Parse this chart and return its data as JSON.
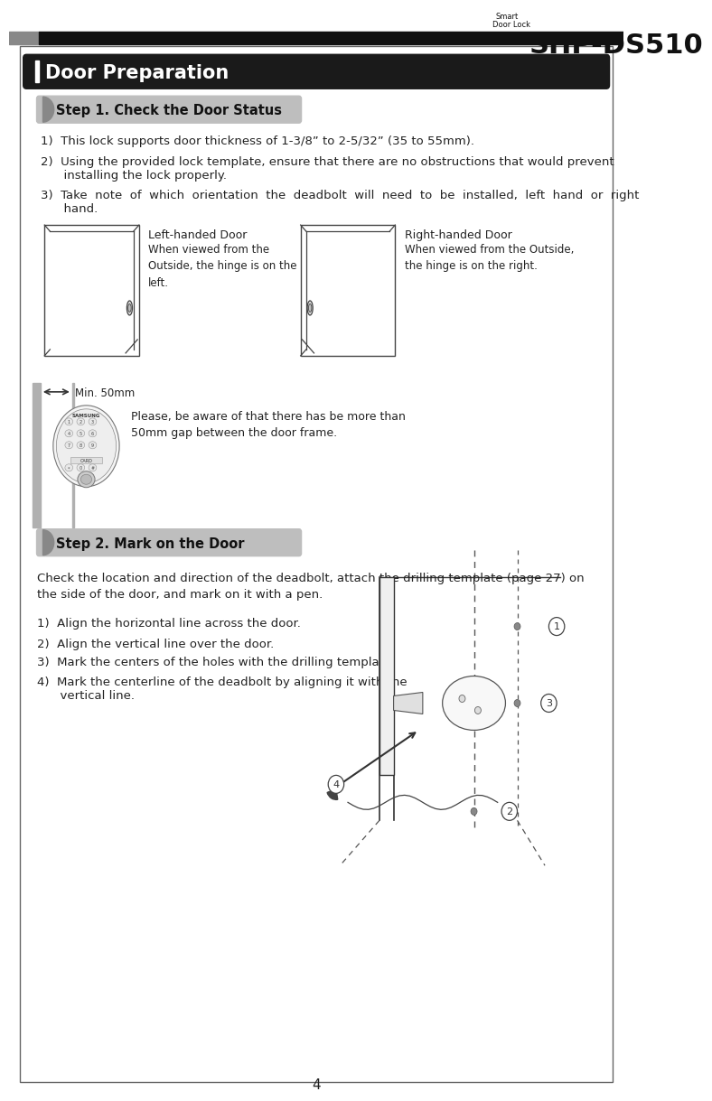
{
  "title_small": "Smart\nDoor Lock",
  "title_large": "SHP-DS510",
  "section_title": "Door Preparation",
  "step1_title": "Step 1. Check the Door Status",
  "step1_item1": "1)  This lock supports door thickness of 1-3/8” to 2-5/32” (35 to 55mm).",
  "step1_item2a": "2)  Using the provided lock template, ensure that there are no obstructions that would prevent",
  "step1_item2b": "      installing the lock properly.",
  "step1_item3a": "3)  Take  note  of  which  orientation  the  deadbolt  will  need  to  be  installed,  left  hand  or  right",
  "step1_item3b": "      hand.",
  "left_door_label": "Left-handed Door",
  "left_door_desc": "When viewed from the\nOutside, the hinge is on the\nleft.",
  "right_door_label": "Right-handed Door",
  "right_door_desc": "When viewed from the Outside,\nthe hinge is on the right.",
  "min_label": "Min. 50mm",
  "please_note": "Please, be aware of that there has be more than\n50mm gap between the door frame.",
  "step2_title": "Step 2. Mark on the Door",
  "step2_intro1": "Check the location and direction of the deadbolt, attach the drilling template (page 27) on",
  "step2_intro2": "the side of the door, and mark on it with a pen.",
  "step2_item1": "1)  Align the horizontal line across the door.",
  "step2_item2": "2)  Align the vertical line over the door.",
  "step2_item3": "3)  Mark the centers of the holes with the drilling template.",
  "step2_item4a": "4)  Mark the centerline of the deadbolt by aligning it with the",
  "step2_item4b": "      vertical line.",
  "page_num": "4",
  "bg_color": "#ffffff"
}
